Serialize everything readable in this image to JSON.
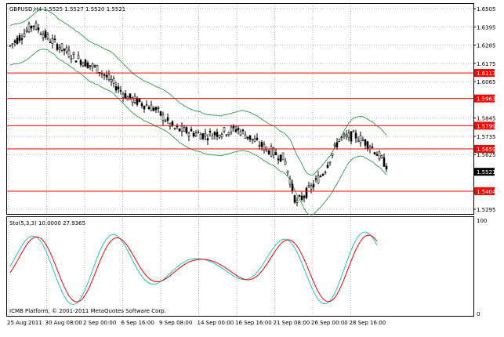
{
  "main_header": "GBPUSD,H4  1.5525 1.5527 1.5520 1.5521",
  "indicator_header": "Sto(5,3,3) 10.0000 27.9365",
  "copyright": "ICMB Platform, © 2001-2011 MetaQuotes Software Corp.",
  "price_axis": [
    "1.6505",
    "1.6395",
    "1.6285",
    "1.6175",
    "1.6065",
    "1.5845",
    "1.5735",
    "1.5625",
    "1.5295"
  ],
  "indicator_axis": [
    "100",
    "0"
  ],
  "time_axis": [
    "25 Aug 2011",
    "30 Aug 08:00",
    "2 Sep 00:00",
    "6 Sep 16:00",
    "9 Sep 08:00",
    "14 Sep 00:00",
    "16 Sep 16:00",
    "21 Sep 08:00",
    "26 Sep 00:00",
    "28 Sep 16:00"
  ],
  "levels": [
    {
      "label": "1.6117",
      "price": 1.6117
    },
    {
      "label": "1.5963",
      "price": 1.5963
    },
    {
      "label": "1.5799",
      "price": 1.5799
    },
    {
      "label": "1.5659",
      "price": 1.5659
    },
    {
      "label": "1.5404",
      "price": 1.5404
    }
  ],
  "current_price": {
    "label": "1.5521",
    "price": 1.5521
  },
  "colors": {
    "level": "#ff0000",
    "bands": "#2e9a4a",
    "k": "#1fc8c8",
    "d": "#ff0000",
    "candle": "#000000"
  }
}
